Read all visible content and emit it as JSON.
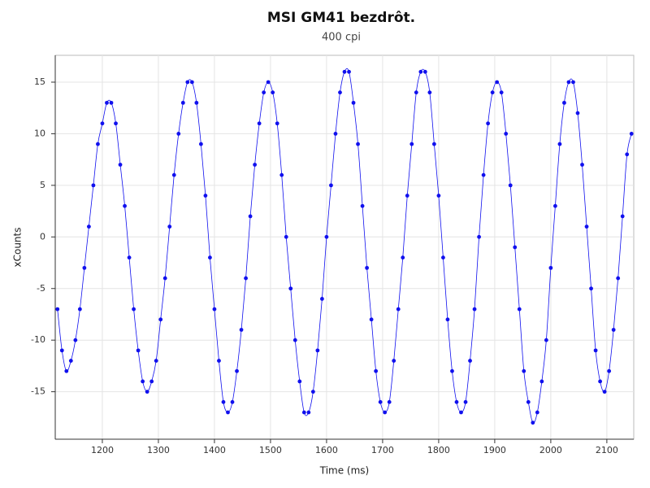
{
  "chart_data": {
    "type": "line",
    "title": "MSI GM41 bezdrôt.",
    "subtitle": "400 cpi",
    "xlabel": "Time (ms)",
    "ylabel": "xCounts",
    "xlim": [
      1116,
      2148
    ],
    "ylim": [
      -19.6,
      17.6
    ],
    "xticks": [
      1200,
      1300,
      1400,
      1500,
      1600,
      1700,
      1800,
      1900,
      2000,
      2100
    ],
    "yticks": [
      -15,
      -10,
      -5,
      0,
      5,
      10,
      15
    ],
    "grid": true,
    "markers": true,
    "x": [
      1120,
      1128,
      1136,
      1144,
      1152,
      1160,
      1168,
      1176,
      1184,
      1192,
      1200,
      1208,
      1216,
      1224,
      1232,
      1240,
      1248,
      1256,
      1264,
      1272,
      1280,
      1288,
      1296,
      1304,
      1312,
      1320,
      1328,
      1336,
      1344,
      1352,
      1360,
      1368,
      1376,
      1384,
      1392,
      1400,
      1408,
      1416,
      1424,
      1432,
      1440,
      1448,
      1456,
      1464,
      1472,
      1480,
      1488,
      1496,
      1504,
      1512,
      1520,
      1528,
      1536,
      1544,
      1552,
      1560,
      1568,
      1576,
      1584,
      1592,
      1600,
      1608,
      1616,
      1624,
      1632,
      1640,
      1648,
      1656,
      1664,
      1672,
      1680,
      1688,
      1696,
      1704,
      1712,
      1720,
      1728,
      1736,
      1744,
      1752,
      1760,
      1768,
      1776,
      1784,
      1792,
      1800,
      1808,
      1816,
      1824,
      1832,
      1840,
      1848,
      1856,
      1864,
      1872,
      1880,
      1888,
      1896,
      1904,
      1912,
      1920,
      1928,
      1936,
      1944,
      1952,
      1960,
      1968,
      1976,
      1984,
      1992,
      2000,
      2008,
      2016,
      2024,
      2032,
      2040,
      2048,
      2056,
      2064,
      2072,
      2080,
      2088,
      2096,
      2104,
      2112,
      2120,
      2128,
      2136,
      2144
    ],
    "series": [
      {
        "name": "xCounts",
        "color": "#1010ee",
        "values": [
          -7,
          -11,
          -13,
          -12,
          -10,
          -7,
          -3,
          1,
          5,
          9,
          11,
          13,
          13,
          11,
          7,
          3,
          -2,
          -7,
          -11,
          -14,
          -15,
          -14,
          -12,
          -8,
          -4,
          1,
          6,
          10,
          13,
          15,
          15,
          13,
          9,
          4,
          -2,
          -7,
          -12,
          -16,
          -17,
          -16,
          -13,
          -9,
          -4,
          2,
          7,
          11,
          14,
          15,
          14,
          11,
          6,
          0,
          -5,
          -10,
          -14,
          -17,
          -17,
          -15,
          -11,
          -6,
          0,
          5,
          10,
          14,
          16,
          16,
          13,
          9,
          3,
          -3,
          -8,
          -13,
          -16,
          -17,
          -16,
          -12,
          -7,
          -2,
          4,
          9,
          14,
          16,
          16,
          14,
          9,
          4,
          -2,
          -8,
          -13,
          -16,
          -17,
          -16,
          -12,
          -7,
          0,
          6,
          11,
          14,
          15,
          14,
          10,
          5,
          -1,
          -7,
          -13,
          -16,
          -18,
          -17,
          -14,
          -10,
          -3,
          3,
          9,
          13,
          15,
          15,
          12,
          7,
          1,
          -5,
          -11,
          -14,
          -15,
          -13,
          -9,
          -4,
          2,
          8,
          10
        ]
      }
    ]
  }
}
